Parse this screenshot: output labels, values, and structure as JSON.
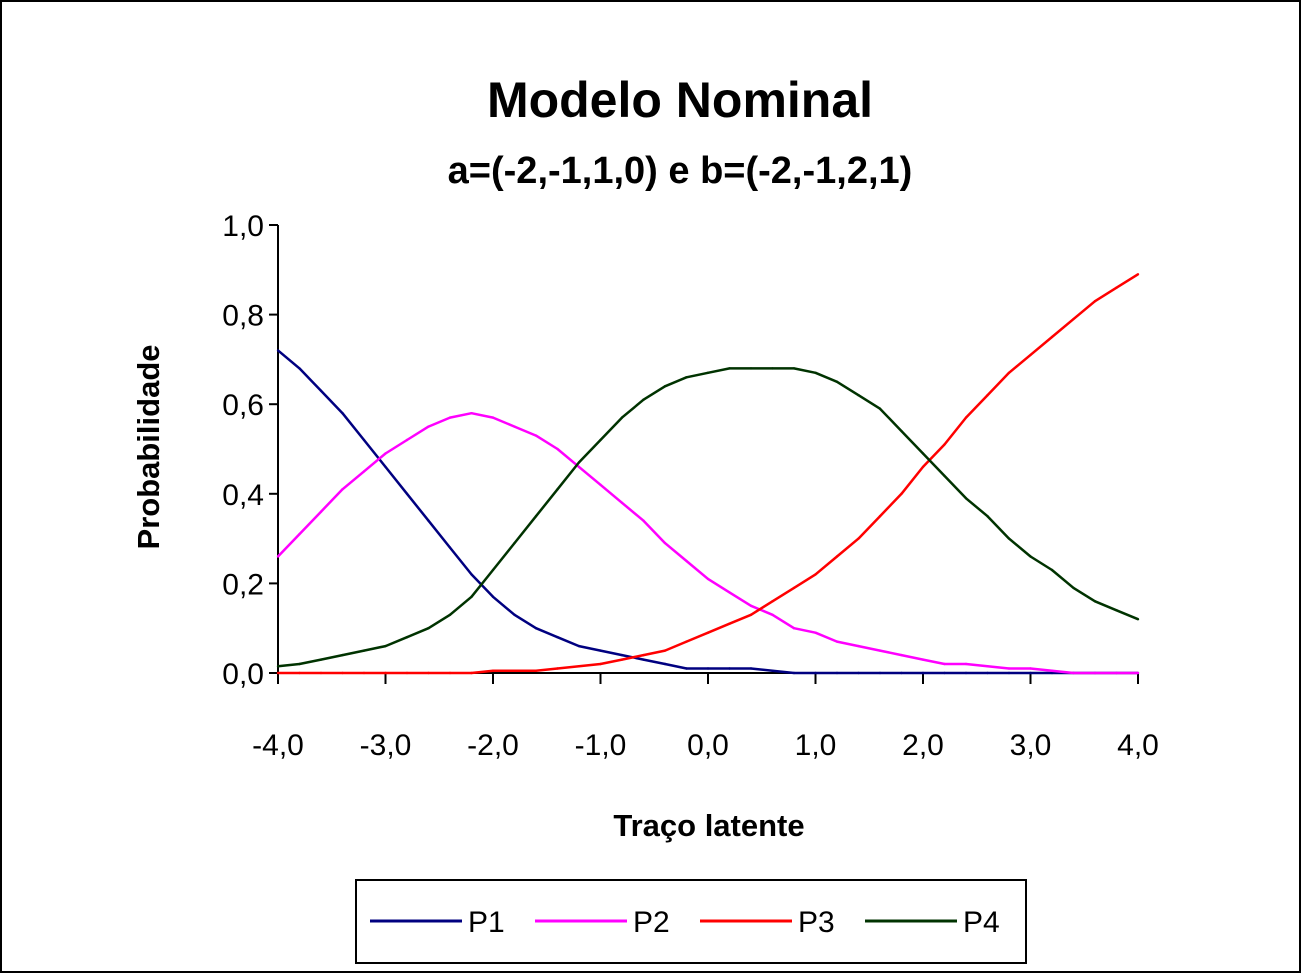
{
  "chart_data": {
    "type": "line",
    "title": "Modelo Nominal",
    "subtitle": "a=(-2,-1,1,0) e b=(-2,-1,2,1)",
    "xlabel": "Traço latente",
    "ylabel": "Probabilidade",
    "xlim": [
      -4,
      4
    ],
    "ylim": [
      0,
      1
    ],
    "x_ticks": [
      "-4,0",
      "-3,0",
      "-2,0",
      "-1,0",
      "0,0",
      "1,0",
      "2,0",
      "3,0",
      "4,0"
    ],
    "y_ticks": [
      "0,0",
      "0,2",
      "0,4",
      "0,6",
      "0,8",
      "1,0"
    ],
    "grid": false,
    "legend_position": "bottom",
    "x": [
      -4.0,
      -3.8,
      -3.6,
      -3.4,
      -3.2,
      -3.0,
      -2.8,
      -2.6,
      -2.4,
      -2.2,
      -2.0,
      -1.8,
      -1.6,
      -1.4,
      -1.2,
      -1.0,
      -0.8,
      -0.6,
      -0.4,
      -0.2,
      0.0,
      0.2,
      0.4,
      0.6,
      0.8,
      1.0,
      1.2,
      1.4,
      1.6,
      1.8,
      2.0,
      2.2,
      2.4,
      2.6,
      2.8,
      3.0,
      3.2,
      3.4,
      3.6,
      3.8,
      4.0
    ],
    "series": [
      {
        "name": "P1",
        "color": "#000080",
        "values": [
          0.72,
          0.68,
          0.63,
          0.58,
          0.52,
          0.46,
          0.4,
          0.34,
          0.28,
          0.22,
          0.17,
          0.13,
          0.1,
          0.08,
          0.06,
          0.05,
          0.04,
          0.03,
          0.02,
          0.01,
          0.01,
          0.01,
          0.01,
          0.005,
          0.0,
          0.0,
          0.0,
          0.0,
          0.0,
          0.0,
          0.0,
          0.0,
          0.0,
          0.0,
          0.0,
          0.0,
          0.0,
          0.0,
          0.0,
          0.0,
          0.0
        ]
      },
      {
        "name": "P2",
        "color": "#FF00FF",
        "values": [
          0.26,
          0.31,
          0.36,
          0.41,
          0.45,
          0.49,
          0.52,
          0.55,
          0.57,
          0.58,
          0.57,
          0.55,
          0.53,
          0.5,
          0.46,
          0.42,
          0.38,
          0.34,
          0.29,
          0.25,
          0.21,
          0.18,
          0.15,
          0.13,
          0.1,
          0.09,
          0.07,
          0.06,
          0.05,
          0.04,
          0.03,
          0.02,
          0.02,
          0.015,
          0.01,
          0.01,
          0.005,
          0.0,
          0.0,
          0.0,
          0.0
        ]
      },
      {
        "name": "P3",
        "color": "#FF0000",
        "values": [
          0.0,
          0.0,
          0.0,
          0.0,
          0.0,
          0.0,
          0.0,
          0.0,
          0.0,
          0.0,
          0.005,
          0.005,
          0.005,
          0.01,
          0.015,
          0.02,
          0.03,
          0.04,
          0.05,
          0.07,
          0.09,
          0.11,
          0.13,
          0.16,
          0.19,
          0.22,
          0.26,
          0.3,
          0.35,
          0.4,
          0.46,
          0.51,
          0.57,
          0.62,
          0.67,
          0.71,
          0.75,
          0.79,
          0.83,
          0.86,
          0.89
        ]
      },
      {
        "name": "P4",
        "color": "#003300",
        "values": [
          0.015,
          0.02,
          0.03,
          0.04,
          0.05,
          0.06,
          0.08,
          0.1,
          0.13,
          0.17,
          0.23,
          0.29,
          0.35,
          0.41,
          0.47,
          0.52,
          0.57,
          0.61,
          0.64,
          0.66,
          0.67,
          0.68,
          0.68,
          0.68,
          0.68,
          0.67,
          0.65,
          0.62,
          0.59,
          0.54,
          0.49,
          0.44,
          0.39,
          0.35,
          0.3,
          0.26,
          0.23,
          0.19,
          0.16,
          0.14,
          0.12
        ]
      }
    ]
  }
}
